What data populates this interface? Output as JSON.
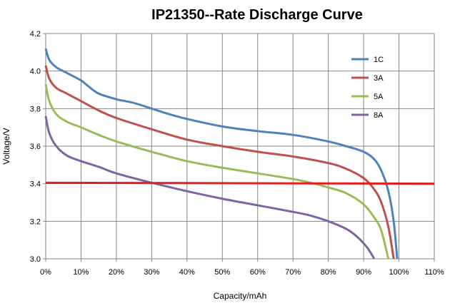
{
  "chart_data": {
    "type": "line",
    "title": "IP21350--Rate Discharge Curve",
    "xlabel": "Capacity/mAh",
    "ylabel": "Voltage/V",
    "xlim": [
      0,
      110
    ],
    "ylim": [
      3.0,
      4.2
    ],
    "x_ticks": [
      "0%",
      "10%",
      "20%",
      "30%",
      "40%",
      "50%",
      "60%",
      "70%",
      "80%",
      "90%",
      "100%",
      "110%"
    ],
    "y_ticks": [
      "3.0",
      "3.2",
      "3.4",
      "3.6",
      "3.8",
      "4.0",
      "4.2"
    ],
    "grid": true,
    "legend_position": "top-right",
    "series": [
      {
        "name": "1C",
        "color": "#4f81bd",
        "points": [
          [
            0,
            4.12
          ],
          [
            1,
            4.06
          ],
          [
            3,
            4.02
          ],
          [
            6,
            3.99
          ],
          [
            10,
            3.95
          ],
          [
            12,
            3.92
          ],
          [
            15,
            3.88
          ],
          [
            20,
            3.85
          ],
          [
            25,
            3.83
          ],
          [
            30,
            3.8
          ],
          [
            35,
            3.77
          ],
          [
            40,
            3.745
          ],
          [
            50,
            3.705
          ],
          [
            60,
            3.68
          ],
          [
            70,
            3.66
          ],
          [
            80,
            3.625
          ],
          [
            85,
            3.6
          ],
          [
            90,
            3.57
          ],
          [
            93,
            3.53
          ],
          [
            95,
            3.47
          ],
          [
            97,
            3.36
          ],
          [
            98.5,
            3.2
          ],
          [
            99.5,
            3.0
          ]
        ]
      },
      {
        "name": "3A",
        "color": "#c0504d",
        "points": [
          [
            0,
            4.03
          ],
          [
            1,
            3.96
          ],
          [
            3,
            3.91
          ],
          [
            6,
            3.88
          ],
          [
            10,
            3.84
          ],
          [
            15,
            3.79
          ],
          [
            20,
            3.75
          ],
          [
            30,
            3.69
          ],
          [
            40,
            3.635
          ],
          [
            50,
            3.6
          ],
          [
            60,
            3.57
          ],
          [
            70,
            3.545
          ],
          [
            80,
            3.51
          ],
          [
            85,
            3.48
          ],
          [
            90,
            3.43
          ],
          [
            93,
            3.37
          ],
          [
            95,
            3.3
          ],
          [
            97,
            3.17
          ],
          [
            98.5,
            3.0
          ]
        ]
      },
      {
        "name": "5A",
        "color": "#9bbb59",
        "points": [
          [
            0,
            3.93
          ],
          [
            1,
            3.84
          ],
          [
            3,
            3.77
          ],
          [
            6,
            3.73
          ],
          [
            10,
            3.7
          ],
          [
            15,
            3.66
          ],
          [
            20,
            3.625
          ],
          [
            30,
            3.57
          ],
          [
            40,
            3.52
          ],
          [
            50,
            3.485
          ],
          [
            60,
            3.455
          ],
          [
            70,
            3.425
          ],
          [
            75,
            3.405
          ],
          [
            80,
            3.38
          ],
          [
            85,
            3.35
          ],
          [
            90,
            3.29
          ],
          [
            93,
            3.22
          ],
          [
            95,
            3.15
          ],
          [
            97,
            3.0
          ]
        ]
      },
      {
        "name": "8A",
        "color": "#8064a2",
        "points": [
          [
            0,
            3.76
          ],
          [
            1,
            3.67
          ],
          [
            3,
            3.6
          ],
          [
            6,
            3.55
          ],
          [
            10,
            3.52
          ],
          [
            15,
            3.49
          ],
          [
            20,
            3.455
          ],
          [
            30,
            3.405
          ],
          [
            40,
            3.36
          ],
          [
            50,
            3.32
          ],
          [
            60,
            3.285
          ],
          [
            70,
            3.25
          ],
          [
            75,
            3.23
          ],
          [
            80,
            3.2
          ],
          [
            85,
            3.16
          ],
          [
            88,
            3.12
          ],
          [
            91,
            3.06
          ],
          [
            93,
            3.0
          ]
        ]
      }
    ],
    "reference_line": {
      "color": "#e02020",
      "y_start": 3.405,
      "y_end": 3.4,
      "x_start": 0,
      "x_end": 110
    }
  }
}
